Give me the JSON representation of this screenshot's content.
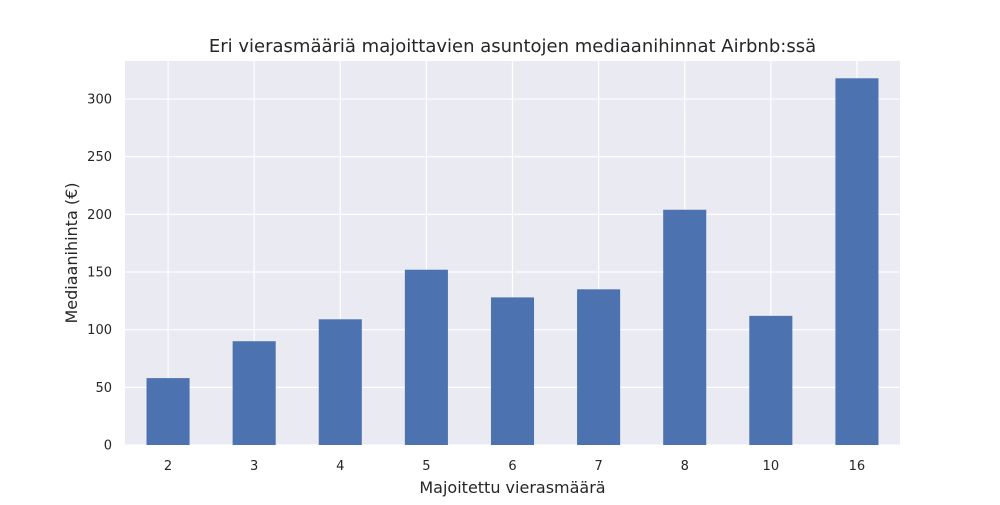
{
  "chart_data": {
    "type": "bar",
    "title": "Eri vierasmääriä majoittavien asuntojen mediaanihinnat Airbnb:ssä",
    "xlabel": "Majoitettu vierasmäärä",
    "ylabel": "Mediaanihinta (€)",
    "categories": [
      "2",
      "3",
      "4",
      "5",
      "6",
      "7",
      "8",
      "10",
      "16"
    ],
    "values": [
      58,
      90,
      109,
      152,
      128,
      135,
      204,
      112,
      318
    ],
    "ylim": [
      0,
      333
    ],
    "yticks": [
      0,
      50,
      100,
      150,
      200,
      250,
      300
    ],
    "grid": true,
    "colors": {
      "bar": "#4c72b0",
      "plot_background": "#eaeaf2",
      "grid": "#ffffff"
    }
  }
}
